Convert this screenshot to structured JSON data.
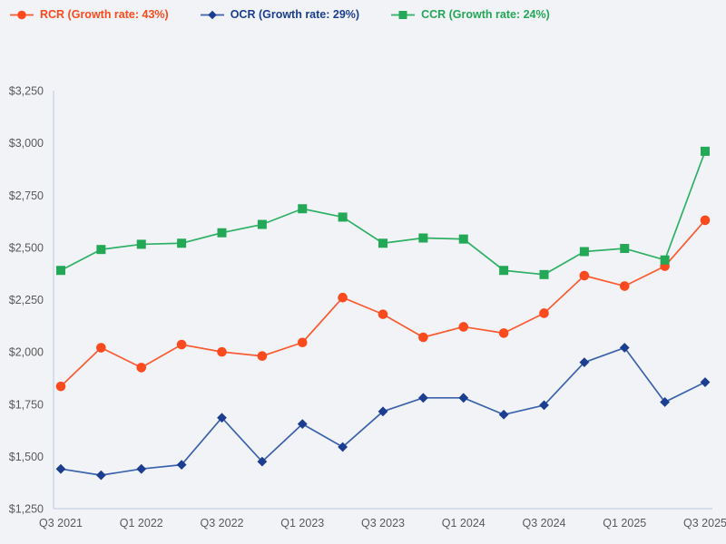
{
  "colors": {
    "background": "#f1f3f6",
    "axis": "#c7cfe2",
    "tick_text": "#595959"
  },
  "chart_data": {
    "type": "line",
    "title": "",
    "xlabel": "",
    "ylabel": "",
    "ylim": [
      1250,
      3250
    ],
    "y_tick_step": 250,
    "y_tick_prefix": "$",
    "x_tick_every": 2,
    "grid": false,
    "legend_position": "top-left",
    "categories": [
      "Q3 2021",
      "Q4 2021",
      "Q1 2022",
      "Q2 2022",
      "Q3 2022",
      "Q4 2022",
      "Q1 2023",
      "Q2 2023",
      "Q3 2023",
      "Q4 2023",
      "Q1 2024",
      "Q2 2024",
      "Q3 2024",
      "Q4 2024",
      "Q1 2025",
      "Q2 2025",
      "Q3 2025"
    ],
    "x_tick_labels": [
      "Q3 2021",
      "Q1 2022",
      "Q3 2022",
      "Q1 2023",
      "Q3 2023",
      "Q1 2024",
      "Q3 2024",
      "Q1 2025",
      "Q3 2025"
    ],
    "y_tick_labels": [
      "$1,250",
      "$1,500",
      "$1,750",
      "$2,000",
      "$2,250",
      "$2,500",
      "$2,750",
      "$3,000",
      "$3,250"
    ],
    "series": [
      {
        "name": "RCR",
        "growth_rate": "43%",
        "legend_label": "RCR (Growth rate: 43%)",
        "marker": "circle",
        "color": "#fb4a1e",
        "line_color": "#fc5a31",
        "values": [
          1835,
          2020,
          1925,
          2035,
          2000,
          1980,
          2045,
          2260,
          2180,
          2070,
          2120,
          2090,
          2185,
          2365,
          2315,
          2410,
          2630
        ]
      },
      {
        "name": "OCR",
        "growth_rate": "29%",
        "legend_label": "OCR (Growth rate: 29%)",
        "marker": "diamond",
        "color": "#1c3e90",
        "line_color": "#3a62ad",
        "values": [
          1440,
          1410,
          1440,
          1460,
          1685,
          1475,
          1655,
          1545,
          1715,
          1780,
          1780,
          1700,
          1745,
          1950,
          2020,
          1760,
          1855
        ]
      },
      {
        "name": "CCR",
        "growth_rate": "24%",
        "legend_label": "CCR (Growth rate: 24%)",
        "marker": "square",
        "color": "#23a857",
        "line_color": "#2eb066",
        "values": [
          2390,
          2490,
          2515,
          2520,
          2570,
          2610,
          2685,
          2645,
          2520,
          2545,
          2540,
          2390,
          2370,
          2480,
          2495,
          2440,
          2960
        ]
      }
    ]
  }
}
